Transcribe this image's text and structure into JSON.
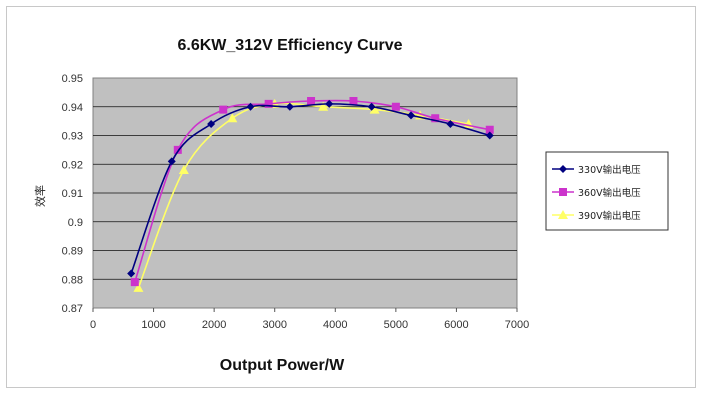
{
  "chart_data": {
    "type": "line",
    "title": "6.6KW_312V Efficiency Curve",
    "xlabel": "Output Power/W",
    "ylabel": "效率",
    "xlim": [
      0,
      7000
    ],
    "ylim": [
      0.87,
      0.95
    ],
    "xticks": [
      "0",
      "1000",
      "2000",
      "3000",
      "4000",
      "5000",
      "6000",
      "7000"
    ],
    "yticks": [
      "0.87",
      "0.88",
      "0.89",
      "0.9",
      "0.91",
      "0.92",
      "0.93",
      "0.94",
      "0.95"
    ],
    "grid": true,
    "legend_position": "right",
    "plot_background": "#c0c0c0",
    "series": [
      {
        "name": "330V输出电压",
        "color": "#000080",
        "marker": "diamond",
        "x": [
          630,
          1300,
          1950,
          2600,
          3250,
          3900,
          4600,
          5250,
          5900,
          6550
        ],
        "y": [
          0.882,
          0.921,
          0.934,
          0.94,
          0.94,
          0.941,
          0.94,
          0.937,
          0.934,
          0.93
        ]
      },
      {
        "name": "360V输出电压",
        "color": "#cc33cc",
        "marker": "square",
        "x": [
          690,
          1400,
          2150,
          2900,
          3600,
          4300,
          5000,
          5650,
          6550
        ],
        "y": [
          0.879,
          0.925,
          0.939,
          0.941,
          0.942,
          0.942,
          0.94,
          0.936,
          0.932
        ]
      },
      {
        "name": "390V输出电压",
        "color": "#ffff66",
        "marker": "triangle",
        "x": [
          750,
          1500,
          2300,
          3000,
          3800,
          4650,
          5400,
          6200
        ],
        "y": [
          0.877,
          0.918,
          0.936,
          0.941,
          0.94,
          0.939,
          0.937,
          0.934
        ]
      }
    ]
  }
}
